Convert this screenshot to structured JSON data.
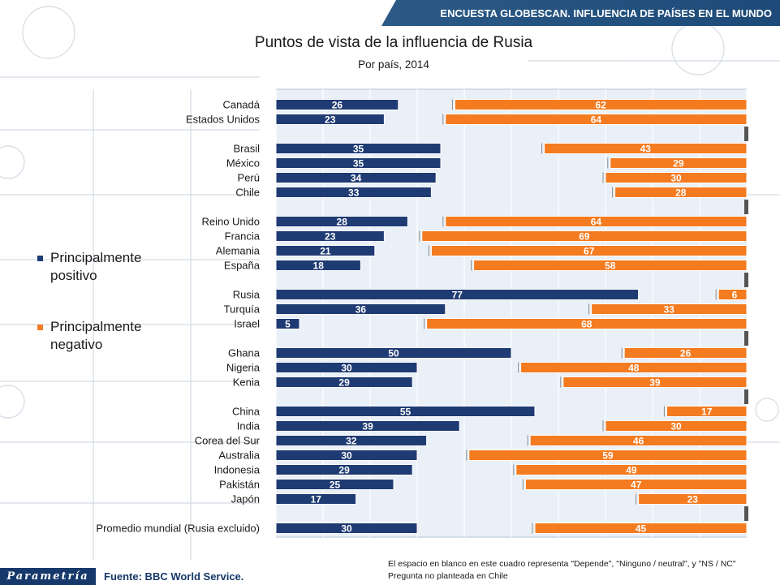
{
  "header": {
    "banner": "ENCUESTA GLOBESCAN. INFLUENCIA DE PAÍSES EN EL MUNDO"
  },
  "chart_data": {
    "type": "bar",
    "orientation": "horizontal",
    "title": "Puntos de vista de la influencia de Rusia",
    "subtitle": "Por país, 2014",
    "xlim": [
      0,
      100
    ],
    "grid": true,
    "legend_placement": "left",
    "series": [
      {
        "name": "Principalmente positivo",
        "color": "#1f3b73",
        "anchor": "left",
        "values": [
          26,
          23,
          35,
          35,
          34,
          33,
          28,
          23,
          21,
          18,
          77,
          36,
          5,
          50,
          30,
          29,
          55,
          39,
          32,
          30,
          29,
          25,
          17,
          30
        ]
      },
      {
        "name": "Principalmente negativo",
        "color": "#f47b20",
        "anchor": "right",
        "values": [
          62,
          64,
          43,
          29,
          30,
          28,
          64,
          69,
          67,
          58,
          6,
          33,
          68,
          26,
          48,
          39,
          17,
          30,
          46,
          59,
          49,
          47,
          23,
          45
        ]
      }
    ],
    "categories": [
      "Canadá",
      "Estados Unidos",
      "Brasil",
      "México",
      "Perú",
      "Chile",
      "Reino Unido",
      "Francia",
      "Alemania",
      "España",
      "Rusia",
      "Turquía",
      "Israel",
      "Ghana",
      "Nigeria",
      "Kenia",
      "China",
      "India",
      "Corea del Sur",
      "Australia",
      "Indonesia",
      "Pakistán",
      "Japón",
      "Promedio mundial (Rusia excluido)"
    ]
  },
  "legend": {
    "positive": "Principalmente positivo",
    "negative": "Principalmente negativo"
  },
  "footer": {
    "brand": "Parametría",
    "source": "Fuente: BBC World Service.",
    "note_line1": "El espacio en blanco en este cuadro representa \"Depende\", \"Ninguno / neutral\", y \"NS / NC\"",
    "note_line2": "Pregunta no planteada en Chile"
  },
  "colors": {
    "positive": "#1f3b73",
    "negative": "#f47b20",
    "banner": "#1d4a78"
  }
}
